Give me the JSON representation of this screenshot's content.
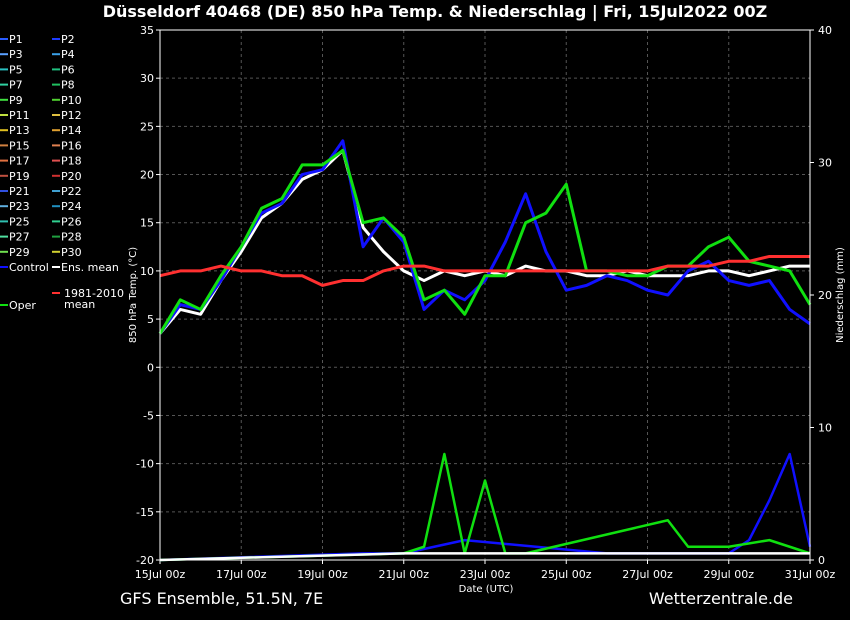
{
  "header": {
    "title": "Düsseldorf 40468 (DE)  850 hPa Temp. & Niederschlag | Fri, 15Jul2022 00Z"
  },
  "footer": {
    "left": "GFS Ensemble, 51.5N, 7E",
    "right": "Wetterzentrale.de"
  },
  "chart_data": {
    "type": "line",
    "title": "Düsseldorf 40468 (DE)  850 hPa Temp. & Niederschlag | Fri, 15Jul2022 00Z",
    "xlabel": "Date (UTC)",
    "ylabel": "850 hPa Temp. (°C)",
    "y2label": "Niederschlag (mm)",
    "ylim": [
      -20,
      35
    ],
    "y2lim": [
      0,
      40
    ],
    "yticks": [
      35,
      30,
      25,
      20,
      15,
      10,
      5,
      0,
      -5,
      -10,
      -15,
      -20
    ],
    "y2ticks": [
      40,
      30,
      20,
      10,
      0
    ],
    "x_days": [
      0,
      2,
      4,
      6,
      8,
      10,
      12,
      14,
      16
    ],
    "x_ticks": [
      "15Jul 00z",
      "17Jul 00z",
      "19Jul 00z",
      "21Jul 00z",
      "23Jul 00z",
      "25Jul 00z",
      "27Jul 00z",
      "29Jul 00z",
      "31Jul 00z"
    ],
    "grid": true,
    "legend_position": "left",
    "legend": [
      {
        "name": "P1",
        "color": "#2a5cff"
      },
      {
        "name": "P2",
        "color": "#1e3cff"
      },
      {
        "name": "P3",
        "color": "#5aa0ff"
      },
      {
        "name": "P4",
        "color": "#3aa0e8"
      },
      {
        "name": "P5",
        "color": "#2ac0c0"
      },
      {
        "name": "P6",
        "color": "#20c080"
      },
      {
        "name": "P7",
        "color": "#30d0a0"
      },
      {
        "name": "P8",
        "color": "#20c060"
      },
      {
        "name": "P9",
        "color": "#40e040"
      },
      {
        "name": "P10",
        "color": "#50d030"
      },
      {
        "name": "P11",
        "color": "#c0e040"
      },
      {
        "name": "P12",
        "color": "#e0c040"
      },
      {
        "name": "P13",
        "color": "#e0c020"
      },
      {
        "name": "P14",
        "color": "#e0a030"
      },
      {
        "name": "P15",
        "color": "#d08040"
      },
      {
        "name": "P16",
        "color": "#e08050"
      },
      {
        "name": "P17",
        "color": "#e07040"
      },
      {
        "name": "P18",
        "color": "#e05050"
      },
      {
        "name": "P19",
        "color": "#c05040"
      },
      {
        "name": "P20",
        "color": "#d03030"
      },
      {
        "name": "P21",
        "color": "#3050e0"
      },
      {
        "name": "P22",
        "color": "#40a0d0"
      },
      {
        "name": "P23",
        "color": "#60b0e0"
      },
      {
        "name": "P24",
        "color": "#2090c0"
      },
      {
        "name": "P25",
        "color": "#30c0b0"
      },
      {
        "name": "P26",
        "color": "#30d090"
      },
      {
        "name": "P27",
        "color": "#50e0a0"
      },
      {
        "name": "P28",
        "color": "#20a040"
      },
      {
        "name": "P29",
        "color": "#70e050"
      },
      {
        "name": "P30",
        "color": "#d0d030"
      },
      {
        "name": "Control",
        "color": "#1010ff"
      },
      {
        "name": "Ens. mean",
        "color": "#ffffff"
      },
      {
        "name": "Oper",
        "color": "#10e010"
      },
      {
        "name": "1981-2010 mean",
        "color": "#ff3030"
      }
    ],
    "x": [
      0,
      0.5,
      1,
      1.5,
      2,
      2.5,
      3,
      3.5,
      4,
      4.5,
      5,
      5.5,
      6,
      6.5,
      7,
      7.5,
      8,
      8.5,
      9,
      9.5,
      10,
      10.5,
      11,
      11.5,
      12,
      12.5,
      13,
      13.5,
      14,
      14.5,
      15,
      15.5,
      16
    ],
    "series": [
      {
        "name": "Ens. mean",
        "color": "#ffffff",
        "values": [
          3.5,
          6,
          5.5,
          9,
          12,
          15.5,
          17,
          19.5,
          20.5,
          22.5,
          14.5,
          12,
          10,
          9,
          10,
          9.5,
          10,
          9.5,
          10.5,
          10,
          10,
          9.5,
          9.5,
          10,
          9.5,
          9.5,
          9.5,
          10,
          10,
          9.5,
          10,
          10.5,
          10.5
        ]
      },
      {
        "name": "Control",
        "color": "#1010ff",
        "values": [
          3.5,
          6.5,
          6,
          9,
          12.5,
          16,
          17,
          20,
          20.5,
          23.5,
          12.5,
          15.5,
          13,
          6,
          8,
          7,
          9,
          13,
          18,
          12,
          8,
          8.5,
          9.5,
          9,
          8,
          7.5,
          10,
          11,
          9,
          8.5,
          9,
          6,
          4.5
        ]
      },
      {
        "name": "Oper",
        "color": "#10e010",
        "values": [
          3.5,
          7,
          6,
          9.5,
          12.5,
          16.5,
          17.5,
          21,
          21,
          22.5,
          15,
          15.5,
          13.5,
          7,
          8,
          5.5,
          9.5,
          9.5,
          15,
          16,
          19,
          10,
          10,
          9.5,
          9.5,
          10.5,
          10.5,
          12.5,
          13.5,
          11,
          10.5,
          10,
          6.5
        ]
      },
      {
        "name": "1981-2010 mean",
        "color": "#ff3030",
        "values": [
          9.5,
          10,
          10,
          10.5,
          10,
          10,
          9.5,
          9.5,
          8.5,
          9,
          9,
          10,
          10.5,
          10.5,
          10,
          10,
          10,
          10,
          10,
          10,
          10,
          10,
          10,
          10,
          10,
          10.5,
          10.5,
          10.5,
          11,
          11,
          11.5,
          11.5,
          11.5
        ]
      }
    ],
    "precip_series": [
      {
        "name": "Control",
        "color": "#1010ff",
        "x": [
          5,
          6,
          7.5,
          11,
          12,
          12.5,
          13,
          14,
          14.5,
          15,
          15.5,
          16
        ],
        "values": [
          0.5,
          0.5,
          1.5,
          0.5,
          0.5,
          0.5,
          0.5,
          0.5,
          1.5,
          4.5,
          8,
          1
        ]
      },
      {
        "name": "Oper",
        "color": "#10e010",
        "x": [
          6,
          6.5,
          7,
          7.5,
          8,
          8.5,
          9,
          12.5,
          13,
          14,
          15,
          16
        ],
        "values": [
          0.5,
          1,
          8,
          0.5,
          6,
          0.5,
          0.5,
          3,
          1,
          1,
          1.5,
          0.5
        ]
      },
      {
        "name": "Ens. mean",
        "color": "#ffffff",
        "x": [
          6,
          8,
          10,
          11,
          12,
          13,
          14,
          15,
          15.5,
          16
        ],
        "values": [
          0.5,
          0.5,
          0.5,
          0.5,
          0.5,
          0.5,
          0.5,
          0.5,
          0.5,
          0.5
        ]
      }
    ]
  }
}
